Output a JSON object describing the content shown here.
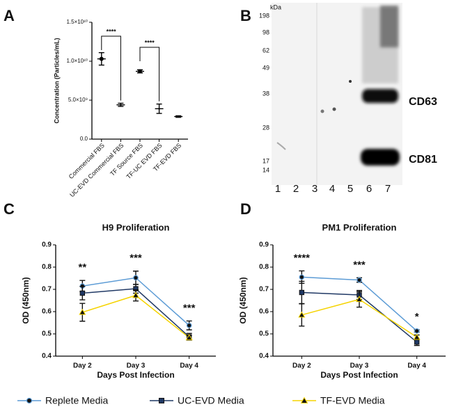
{
  "chart_data": [
    {
      "type": "dot-errorbar",
      "panel_label": "A",
      "ylabel": "Concentration (Particles/mL)",
      "categories": [
        "Commercial FBS",
        "UC-EVD Commercial FBS",
        "TF Source FBS",
        "TF-UC EVD FBS",
        "TF-EVD FBS"
      ],
      "values": [
        10300000000,
        4400000000,
        8700000000,
        3900000000,
        2900000000
      ],
      "errors": [
        800000000,
        200000000,
        200000000,
        600000000,
        100000000
      ],
      "color": "#000000",
      "ylim": [
        0,
        15000000000
      ],
      "yticks": [
        {
          "value": 0,
          "label": "0.0"
        },
        {
          "value": 5000000000,
          "label": "5.0×10⁹"
        },
        {
          "value": 10000000000,
          "label": "1.0×10¹⁰"
        },
        {
          "value": 15000000000,
          "label": "1.5×10¹⁰"
        }
      ],
      "annotations": [
        "****",
        "****"
      ]
    },
    {
      "type": "line",
      "panel_label": "C",
      "title": "H9 Proliferation",
      "xlabel": "Days Post Infection",
      "ylabel": "OD (450nm)",
      "categories": [
        "Day 2",
        "Day 3",
        "Day 4"
      ],
      "series": [
        {
          "name": "Replete Media",
          "color": "#5b9bd5",
          "marker": "circle",
          "values": [
            0.715,
            0.752,
            0.538
          ],
          "errors": [
            0.025,
            0.03,
            0.02
          ]
        },
        {
          "name": "UC-EVD Media",
          "color": "#1f3864",
          "marker": "square",
          "values": [
            0.683,
            0.703,
            0.487
          ],
          "errors": [
            0.03,
            0.02,
            0.015
          ]
        },
        {
          "name": "TF-EVD Media",
          "color": "#f5d300",
          "marker": "triangle",
          "values": [
            0.597,
            0.673,
            0.483
          ],
          "errors": [
            0.04,
            0.025,
            0.01
          ]
        }
      ],
      "ylim": [
        0.4,
        0.9
      ],
      "yticks": [
        0.4,
        0.5,
        0.6,
        0.7,
        0.8,
        0.9
      ],
      "annotations": [
        "**",
        "***",
        "***"
      ]
    },
    {
      "type": "line",
      "panel_label": "D",
      "title": "PM1 Proliferation",
      "xlabel": "Days Post Infection",
      "ylabel": "OD (450nm)",
      "categories": [
        "Day 2",
        "Day 3",
        "Day 4"
      ],
      "series": [
        {
          "color": "#5b9bd5",
          "marker": "circle",
          "values": [
            0.755,
            0.742,
            0.513
          ],
          "errors": [
            0.028,
            0.01,
            0.005
          ]
        },
        {
          "color": "#1f3864",
          "marker": "square",
          "values": [
            0.686,
            0.675,
            0.463
          ],
          "errors": [
            0.05,
            0.02,
            0.015
          ]
        },
        {
          "color": "#f5d300",
          "marker": "triangle",
          "values": [
            0.585,
            0.655,
            0.485
          ],
          "errors": [
            0.05,
            0.035,
            0.01
          ]
        }
      ],
      "ylim": [
        0.4,
        0.9
      ],
      "yticks": [
        0.4,
        0.5,
        0.6,
        0.7,
        0.8,
        0.9
      ],
      "annotations": [
        "****",
        "***",
        "*"
      ]
    }
  ],
  "blot": {
    "panel_label": "B",
    "unit": "kDa",
    "markers": [
      198,
      98,
      62,
      49,
      38,
      28,
      17,
      14
    ],
    "lanes": [
      1,
      2,
      3,
      4,
      5,
      6,
      7
    ],
    "bands": [
      "CD63",
      "CD81"
    ]
  }
}
